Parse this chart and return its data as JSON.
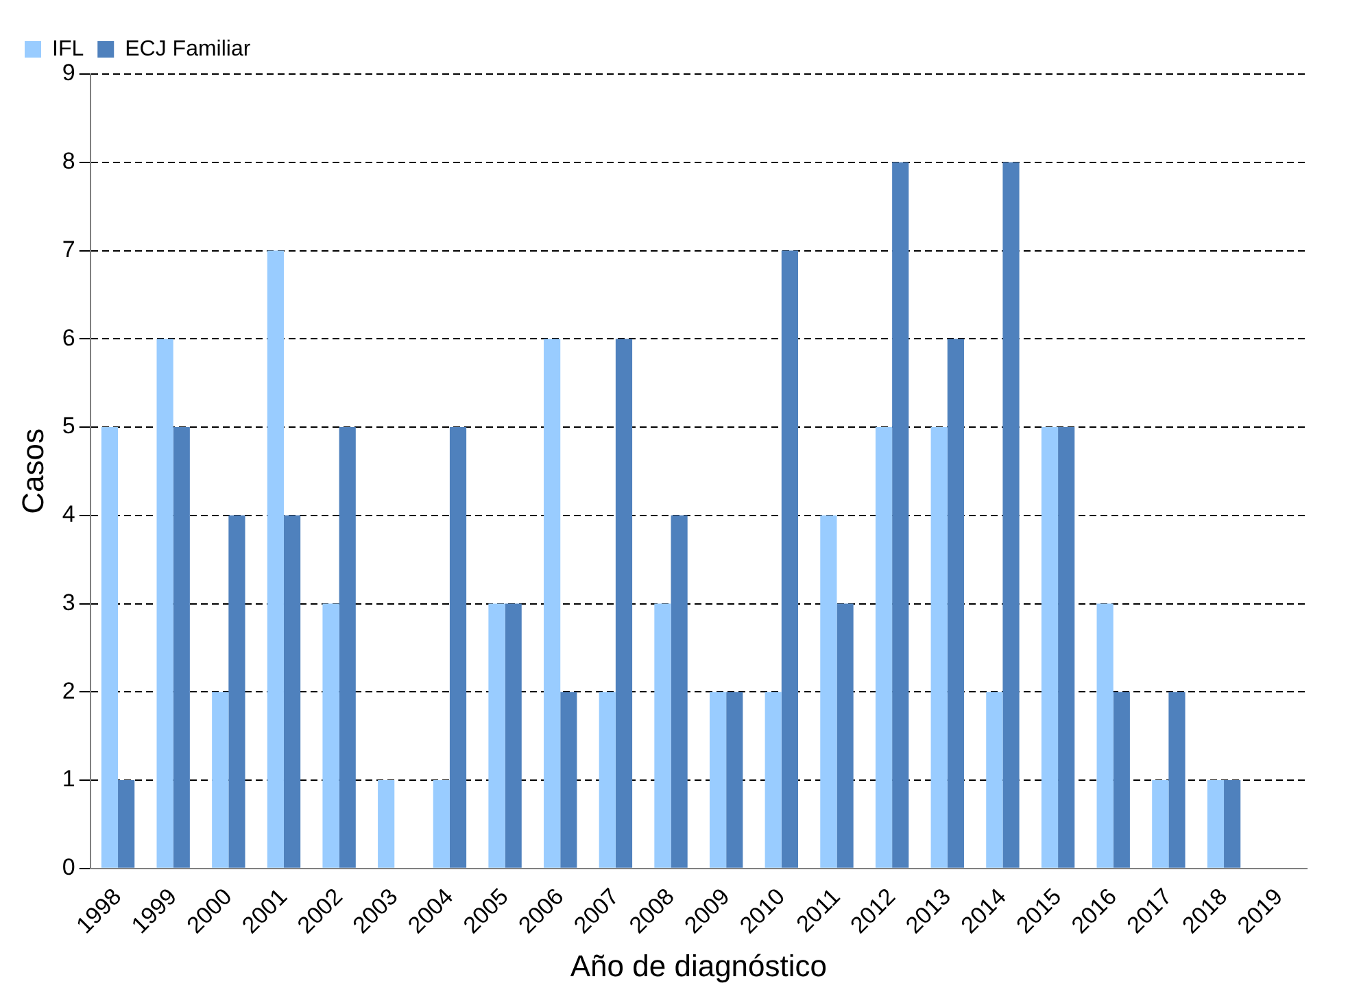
{
  "chart_data": {
    "type": "bar",
    "xlabel": "Año de diagnóstico",
    "ylabel": "Casos",
    "categories": [
      "1998",
      "1999",
      "2000",
      "2001",
      "2002",
      "2003",
      "2004",
      "2005",
      "2006",
      "2007",
      "2008",
      "2009",
      "2010",
      "2011",
      "2012",
      "2013",
      "2014",
      "2015",
      "2016",
      "2017",
      "2018",
      "2019"
    ],
    "series": [
      {
        "name": "IFL",
        "color": "#99ccff",
        "values": [
          5,
          6,
          2,
          7,
          3,
          1,
          1,
          3,
          6,
          2,
          3,
          2,
          2,
          4,
          5,
          5,
          2,
          5,
          3,
          1,
          1,
          0
        ]
      },
      {
        "name": "ECJ Familiar",
        "color": "#4f81bd",
        "values": [
          1,
          5,
          4,
          4,
          5,
          0,
          5,
          3,
          2,
          6,
          4,
          2,
          7,
          3,
          8,
          6,
          8,
          5,
          2,
          2,
          1,
          0
        ]
      }
    ],
    "ylim": [
      0,
      9
    ],
    "yticks": [
      0,
      1,
      2,
      3,
      4,
      5,
      6,
      7,
      8,
      9
    ],
    "grid": "y",
    "line_style": "dashed",
    "legend": "top left"
  }
}
